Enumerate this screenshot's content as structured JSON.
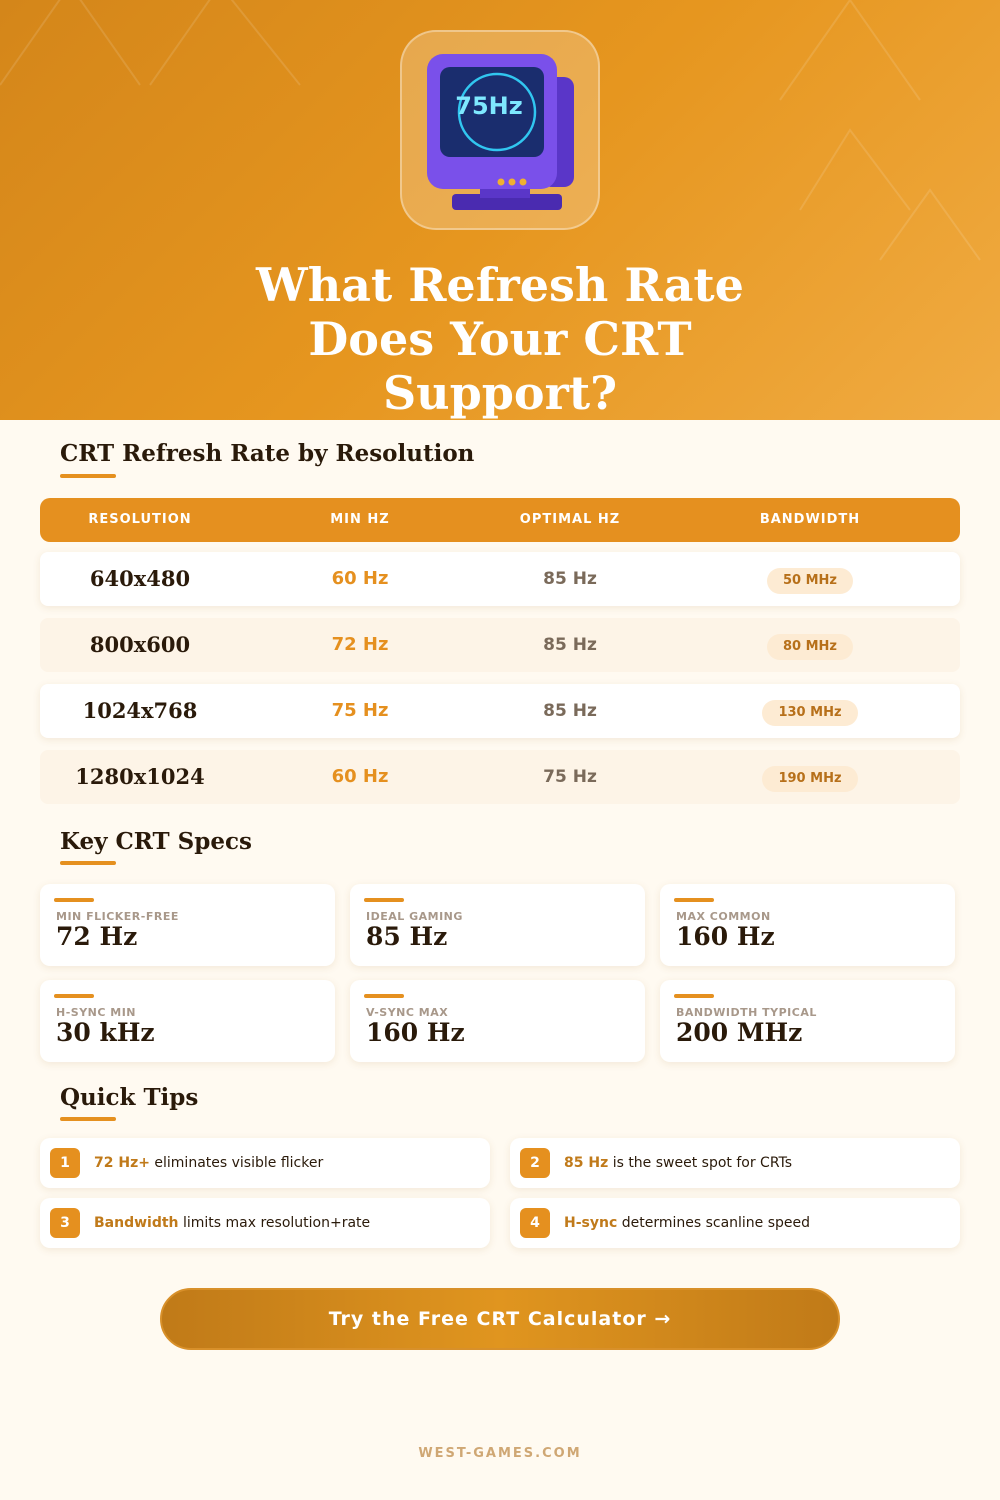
{
  "header": {
    "title": "What Refresh Rate Does Your CRT Support?",
    "icon_text": "75Hz"
  },
  "table": {
    "title": "CRT Refresh Rate by Resolution",
    "columns": [
      "RESOLUTION",
      "MIN HZ",
      "OPTIMAL HZ",
      "BANDWIDTH"
    ],
    "rows": [
      [
        "640x480",
        "60 Hz",
        "85 Hz",
        "50 MHz"
      ],
      [
        "800x600",
        "72 Hz",
        "85 Hz",
        "80 MHz"
      ],
      [
        "1024x768",
        "75 Hz",
        "85 Hz",
        "130 MHz"
      ],
      [
        "1280x1024",
        "60 Hz",
        "75 Hz",
        "190 MHz"
      ]
    ]
  },
  "specs": {
    "title": "Key CRT Specs",
    "items": [
      {
        "label": "MIN FLICKER-FREE",
        "value": "72 Hz"
      },
      {
        "label": "IDEAL GAMING",
        "value": "85 Hz"
      },
      {
        "label": "MAX COMMON",
        "value": "160 Hz"
      },
      {
        "label": "H-SYNC MIN",
        "value": "30 kHz"
      },
      {
        "label": "V-SYNC MAX",
        "value": "160 Hz"
      },
      {
        "label": "BANDWIDTH TYPICAL",
        "value": "200 MHz"
      }
    ]
  },
  "tips": {
    "title": "Quick Tips",
    "items": [
      {
        "number": "1",
        "highlight": "72 Hz+",
        "text": "eliminates visible flicker"
      },
      {
        "number": "2",
        "highlight": "85 Hz",
        "text": "is the sweet spot for CRTs"
      },
      {
        "number": "3",
        "highlight": "Bandwidth",
        "text": "limits max resolution+rate"
      },
      {
        "number": "4",
        "highlight": "H-sync",
        "text": "determines scanline speed"
      }
    ]
  },
  "cta": {
    "label": "Try the Free CRT Calculator →"
  },
  "footer": {
    "text": "WEST-GAMES.COM"
  }
}
